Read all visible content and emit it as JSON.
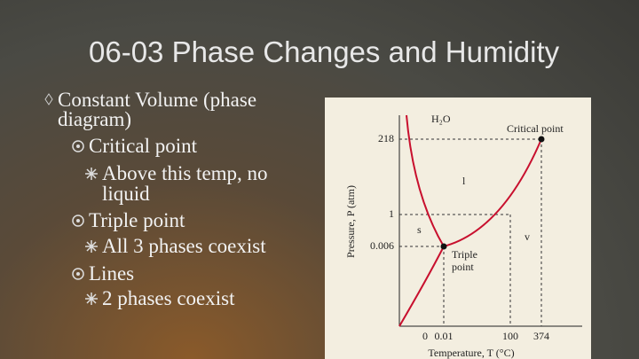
{
  "title": "06-03 Phase Changes and Humidity",
  "bullets": [
    {
      "text": "Constant Volume (phase",
      "cont": "diagram)",
      "children": [
        {
          "text": "Critical point",
          "children": [
            {
              "text": "Above this temp, no",
              "cont": "liquid"
            }
          ]
        },
        {
          "text": "Triple point",
          "children": [
            {
              "text": "All 3 phases coexist"
            }
          ]
        },
        {
          "text": "Lines",
          "children": [
            {
              "text": "2 phases coexist"
            }
          ]
        }
      ]
    }
  ],
  "figure": {
    "title": "H₂O",
    "y_label": "Pressure, P (atm)",
    "x_label": "Temperature, T (°C)",
    "y_tick_labels": [
      "218",
      "1",
      "0.006"
    ],
    "x_tick_labels": [
      "0",
      "0.01",
      "100",
      "374"
    ],
    "regions": [
      "l",
      "s",
      "v"
    ],
    "critical_point": "Critical point",
    "triple_point": [
      "Triple",
      "point"
    ]
  }
}
